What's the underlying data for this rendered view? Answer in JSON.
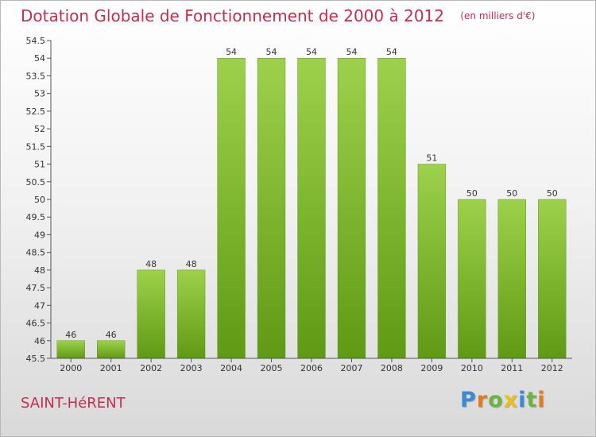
{
  "chart_data": {
    "type": "bar",
    "title": "Dotation Globale de Fonctionnement de 2000 à 2012",
    "subtitle": "(en milliers d'€)",
    "categories": [
      "2000",
      "2001",
      "2002",
      "2003",
      "2004",
      "2005",
      "2006",
      "2007",
      "2008",
      "2009",
      "2010",
      "2011",
      "2012"
    ],
    "values": [
      46,
      46,
      48,
      48,
      54,
      54,
      54,
      54,
      54,
      51,
      50,
      50,
      50
    ],
    "value_labels": [
      "46",
      "46",
      "48",
      "48",
      "54",
      "54",
      "54",
      "54",
      "54",
      "51",
      "50",
      "50",
      "50"
    ],
    "ylim": [
      45.5,
      54.5
    ],
    "yticks": [
      "45.5",
      "46",
      "46.5",
      "47",
      "47.5",
      "48",
      "48.5",
      "49",
      "49.5",
      "50",
      "50.5",
      "51",
      "51.5",
      "52",
      "52.5",
      "53",
      "53.5",
      "54",
      "54.5"
    ],
    "xlabel": "",
    "ylabel": "",
    "grid": false,
    "legend": "none"
  },
  "commune": "SAINT-HéRENT",
  "brand": {
    "letters": [
      "P",
      "r",
      "o",
      "x",
      "i",
      "t",
      "i"
    ],
    "colors": [
      "#3a8ad8",
      "#e07b1f",
      "#6cb43f",
      "#e8c21a",
      "#3a8ad8",
      "#6cb43f",
      "#e07b1f"
    ]
  },
  "colors": {
    "title": "#c0304d",
    "bar_light": "#9ed14b",
    "bar_dark": "#5f9a14",
    "axis": "#555555",
    "text": "#333333"
  }
}
